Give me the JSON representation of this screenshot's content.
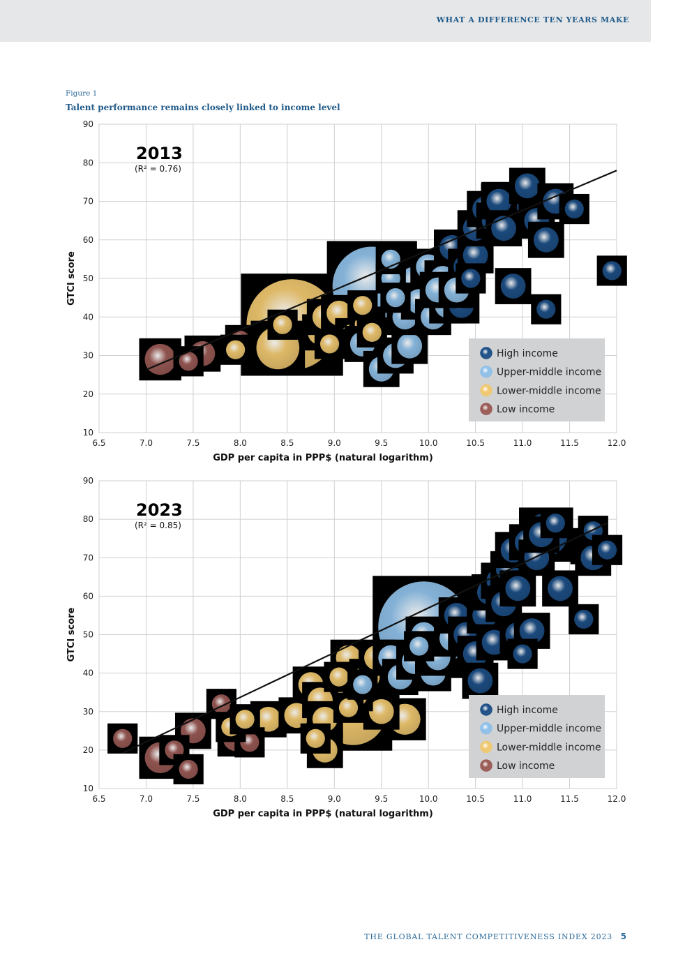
{
  "header": {
    "running_title": "WHAT A DIFFERENCE TEN YEARS MAKE"
  },
  "figure": {
    "label": "Figure 1",
    "title": "Talent performance remains closely linked to income level"
  },
  "colors": {
    "high": "#1d4f86",
    "upper_middle": "#8fc0e8",
    "lower_middle": "#f0c870",
    "low": "#9a5a55",
    "legend_bg": "#d1d2d4",
    "grid": "#cfcfcf",
    "header_band": "#e6e7e8"
  },
  "legend": {
    "items": [
      {
        "key": "high",
        "label": "High income"
      },
      {
        "key": "upper_middle",
        "label": "Upper-middle income"
      },
      {
        "key": "lower_middle",
        "label": "Lower-middle income"
      },
      {
        "key": "low",
        "label": "Low income"
      }
    ]
  },
  "chart_data": [
    {
      "type": "scatter",
      "title": "2013",
      "r2_label": "(R² = 0.76)",
      "xlabel": "GDP per capita in PPP$ (natural logarithm)",
      "ylabel": "GTCI score",
      "xlim": [
        6.5,
        12.0
      ],
      "ylim": [
        10,
        90
      ],
      "xticks": [
        "6.5",
        "7.0",
        "7.5",
        "8.0",
        "8.5",
        "9.0",
        "9.5",
        "10.0",
        "10.5",
        "11.0",
        "11.5",
        "12.0"
      ],
      "yticks": [
        "10",
        "20",
        "30",
        "40",
        "50",
        "60",
        "70",
        "80",
        "90"
      ],
      "trendline": {
        "x": [
          7.0,
          12.0
        ],
        "y": [
          26.3,
          78.0
        ]
      },
      "points": [
        {
          "x": 7.15,
          "y": 29,
          "s": 4,
          "g": "low"
        },
        {
          "x": 7.45,
          "y": 28.5,
          "s": 2,
          "g": "low"
        },
        {
          "x": 7.6,
          "y": 30.5,
          "s": 3,
          "g": "low"
        },
        {
          "x": 8.0,
          "y": 34,
          "s": 2,
          "g": "low"
        },
        {
          "x": 7.95,
          "y": 31.5,
          "s": 2,
          "g": "lower_middle"
        },
        {
          "x": 8.55,
          "y": 38,
          "s": 14,
          "g": "lower_middle"
        },
        {
          "x": 8.4,
          "y": 32,
          "s": 6,
          "g": "lower_middle"
        },
        {
          "x": 8.45,
          "y": 38,
          "s": 2,
          "g": "lower_middle"
        },
        {
          "x": 8.85,
          "y": 36,
          "s": 3,
          "g": "lower_middle"
        },
        {
          "x": 8.9,
          "y": 40,
          "s": 3,
          "g": "lower_middle"
        },
        {
          "x": 8.95,
          "y": 33,
          "s": 2,
          "g": "lower_middle"
        },
        {
          "x": 9.05,
          "y": 41,
          "s": 3,
          "g": "lower_middle"
        },
        {
          "x": 9.2,
          "y": 35,
          "s": 3,
          "g": "lower_middle"
        },
        {
          "x": 9.3,
          "y": 43,
          "s": 2,
          "g": "lower_middle"
        },
        {
          "x": 9.35,
          "y": 38,
          "s": 3,
          "g": "lower_middle"
        },
        {
          "x": 9.4,
          "y": 36,
          "s": 2,
          "g": "lower_middle"
        },
        {
          "x": 9.3,
          "y": 33,
          "s": 3,
          "g": "upper_middle"
        },
        {
          "x": 9.4,
          "y": 48,
          "s": 12,
          "g": "upper_middle"
        },
        {
          "x": 9.5,
          "y": 26.5,
          "s": 3,
          "g": "upper_middle"
        },
        {
          "x": 9.65,
          "y": 30,
          "s": 3,
          "g": "upper_middle"
        },
        {
          "x": 9.8,
          "y": 32.5,
          "s": 3,
          "g": "upper_middle"
        },
        {
          "x": 9.6,
          "y": 50,
          "s": 2,
          "g": "upper_middle"
        },
        {
          "x": 9.65,
          "y": 45,
          "s": 2,
          "g": "upper_middle"
        },
        {
          "x": 9.75,
          "y": 40,
          "s": 3,
          "g": "upper_middle"
        },
        {
          "x": 9.6,
          "y": 55,
          "s": 2,
          "g": "upper_middle"
        },
        {
          "x": 9.9,
          "y": 44,
          "s": 3,
          "g": "upper_middle"
        },
        {
          "x": 10.0,
          "y": 53,
          "s": 3,
          "g": "upper_middle"
        },
        {
          "x": 10.05,
          "y": 40,
          "s": 3,
          "g": "upper_middle"
        },
        {
          "x": 10.15,
          "y": 50,
          "s": 3,
          "g": "upper_middle"
        },
        {
          "x": 10.2,
          "y": 43,
          "s": 3,
          "g": "upper_middle"
        },
        {
          "x": 10.25,
          "y": 58,
          "s": 3,
          "g": "high"
        },
        {
          "x": 10.35,
          "y": 43,
          "s": 3,
          "g": "high"
        },
        {
          "x": 10.4,
          "y": 53,
          "s": 3,
          "g": "high"
        },
        {
          "x": 10.45,
          "y": 50,
          "s": 2,
          "g": "high"
        },
        {
          "x": 10.5,
          "y": 56,
          "s": 3,
          "g": "high"
        },
        {
          "x": 10.5,
          "y": 63,
          "s": 3,
          "g": "high"
        },
        {
          "x": 10.6,
          "y": 68,
          "s": 3,
          "g": "high"
        },
        {
          "x": 10.7,
          "y": 65,
          "s": 3,
          "g": "high"
        },
        {
          "x": 10.75,
          "y": 70,
          "s": 3,
          "g": "high"
        },
        {
          "x": 10.8,
          "y": 63,
          "s": 3,
          "g": "high"
        },
        {
          "x": 10.85,
          "y": 68,
          "s": 6,
          "g": "high"
        },
        {
          "x": 10.9,
          "y": 48,
          "s": 3,
          "g": "high"
        },
        {
          "x": 11.05,
          "y": 74,
          "s": 3,
          "g": "high"
        },
        {
          "x": 11.15,
          "y": 65,
          "s": 3,
          "g": "high"
        },
        {
          "x": 11.25,
          "y": 60,
          "s": 3,
          "g": "high"
        },
        {
          "x": 11.25,
          "y": 42,
          "s": 2,
          "g": "high"
        },
        {
          "x": 11.35,
          "y": 70,
          "s": 3,
          "g": "high"
        },
        {
          "x": 11.55,
          "y": 68,
          "s": 2,
          "g": "high"
        },
        {
          "x": 11.95,
          "y": 52,
          "s": 2,
          "g": "high"
        },
        {
          "x": 10.1,
          "y": 47,
          "s": 3,
          "g": "upper_middle"
        },
        {
          "x": 9.85,
          "y": 49,
          "s": 4,
          "g": "upper_middle"
        },
        {
          "x": 10.3,
          "y": 47,
          "s": 3,
          "g": "upper_middle"
        }
      ]
    },
    {
      "type": "scatter",
      "title": "2023",
      "r2_label": "(R² = 0.85)",
      "xlabel": "GDP per capita in PPP$ (natural logarithm)",
      "ylabel": "GTCI score",
      "xlim": [
        6.5,
        12.0
      ],
      "ylim": [
        10,
        90
      ],
      "xticks": [
        "6.5",
        "7.0",
        "7.5",
        "8.0",
        "8.5",
        "9.0",
        "9.5",
        "10.0",
        "10.5",
        "11.0",
        "11.5",
        "12.0"
      ],
      "yticks": [
        "10",
        "20",
        "30",
        "40",
        "50",
        "60",
        "70",
        "80",
        "90"
      ],
      "trendline": {
        "x": [
          6.75,
          11.9
        ],
        "y": [
          19.2,
          79.0
        ]
      },
      "points": [
        {
          "x": 6.75,
          "y": 23,
          "s": 2,
          "g": "low"
        },
        {
          "x": 7.15,
          "y": 18,
          "s": 4,
          "g": "low"
        },
        {
          "x": 7.3,
          "y": 20,
          "s": 2,
          "g": "low"
        },
        {
          "x": 7.45,
          "y": 15,
          "s": 2,
          "g": "low"
        },
        {
          "x": 7.5,
          "y": 25,
          "s": 3,
          "g": "low"
        },
        {
          "x": 7.8,
          "y": 32,
          "s": 2,
          "g": "low"
        },
        {
          "x": 7.95,
          "y": 23,
          "s": 3,
          "g": "low"
        },
        {
          "x": 8.1,
          "y": 22,
          "s": 2,
          "g": "low"
        },
        {
          "x": 7.9,
          "y": 26,
          "s": 2,
          "g": "lower_middle"
        },
        {
          "x": 8.05,
          "y": 28,
          "s": 2,
          "g": "lower_middle"
        },
        {
          "x": 8.3,
          "y": 28,
          "s": 3,
          "g": "lower_middle"
        },
        {
          "x": 8.6,
          "y": 29,
          "s": 3,
          "g": "lower_middle"
        },
        {
          "x": 8.75,
          "y": 37,
          "s": 3,
          "g": "lower_middle"
        },
        {
          "x": 8.85,
          "y": 33,
          "s": 3,
          "g": "lower_middle"
        },
        {
          "x": 8.8,
          "y": 23,
          "s": 2,
          "g": "lower_middle"
        },
        {
          "x": 8.9,
          "y": 28,
          "s": 3,
          "g": "lower_middle"
        },
        {
          "x": 8.9,
          "y": 20,
          "s": 3,
          "g": "lower_middle"
        },
        {
          "x": 9.2,
          "y": 30,
          "s": 10,
          "g": "lower_middle"
        },
        {
          "x": 9.15,
          "y": 44,
          "s": 3,
          "g": "lower_middle"
        },
        {
          "x": 9.25,
          "y": 34,
          "s": 2,
          "g": "lower_middle"
        },
        {
          "x": 9.35,
          "y": 39,
          "s": 3,
          "g": "lower_middle"
        },
        {
          "x": 9.45,
          "y": 44,
          "s": 3,
          "g": "lower_middle"
        },
        {
          "x": 9.5,
          "y": 30,
          "s": 3,
          "g": "lower_middle"
        },
        {
          "x": 9.75,
          "y": 28,
          "s": 4,
          "g": "lower_middle"
        },
        {
          "x": 9.05,
          "y": 39,
          "s": 2,
          "g": "lower_middle"
        },
        {
          "x": 9.15,
          "y": 31,
          "s": 2,
          "g": "lower_middle"
        },
        {
          "x": 9.95,
          "y": 52,
          "s": 14,
          "g": "upper_middle"
        },
        {
          "x": 9.3,
          "y": 37,
          "s": 2,
          "g": "upper_middle"
        },
        {
          "x": 9.6,
          "y": 44,
          "s": 3,
          "g": "upper_middle"
        },
        {
          "x": 9.7,
          "y": 39,
          "s": 3,
          "g": "upper_middle"
        },
        {
          "x": 9.85,
          "y": 43,
          "s": 3,
          "g": "upper_middle"
        },
        {
          "x": 9.9,
          "y": 47,
          "s": 2,
          "g": "upper_middle"
        },
        {
          "x": 9.95,
          "y": 50,
          "s": 3,
          "g": "upper_middle"
        },
        {
          "x": 10.05,
          "y": 40,
          "s": 3,
          "g": "upper_middle"
        },
        {
          "x": 10.1,
          "y": 44,
          "s": 3,
          "g": "upper_middle"
        },
        {
          "x": 10.25,
          "y": 49,
          "s": 3,
          "g": "upper_middle"
        },
        {
          "x": 10.3,
          "y": 55,
          "s": 3,
          "g": "high"
        },
        {
          "x": 10.4,
          "y": 50,
          "s": 3,
          "g": "high"
        },
        {
          "x": 10.5,
          "y": 45,
          "s": 3,
          "g": "high"
        },
        {
          "x": 10.55,
          "y": 38,
          "s": 3,
          "g": "high"
        },
        {
          "x": 10.6,
          "y": 55,
          "s": 3,
          "g": "high"
        },
        {
          "x": 10.65,
          "y": 61,
          "s": 3,
          "g": "high"
        },
        {
          "x": 10.7,
          "y": 48,
          "s": 3,
          "g": "high"
        },
        {
          "x": 10.75,
          "y": 64,
          "s": 3,
          "g": "high"
        },
        {
          "x": 10.8,
          "y": 58,
          "s": 3,
          "g": "high"
        },
        {
          "x": 10.85,
          "y": 67,
          "s": 3,
          "g": "high"
        },
        {
          "x": 10.9,
          "y": 72,
          "s": 3,
          "g": "high"
        },
        {
          "x": 10.95,
          "y": 50,
          "s": 3,
          "g": "high"
        },
        {
          "x": 11.0,
          "y": 45,
          "s": 2,
          "g": "high"
        },
        {
          "x": 11.05,
          "y": 74,
          "s": 3,
          "g": "high"
        },
        {
          "x": 11.15,
          "y": 70,
          "s": 3,
          "g": "high"
        },
        {
          "x": 11.2,
          "y": 76,
          "s": 3,
          "g": "high"
        },
        {
          "x": 11.25,
          "y": 76,
          "s": 6,
          "g": "high"
        },
        {
          "x": 11.35,
          "y": 79,
          "s": 2,
          "g": "high"
        },
        {
          "x": 11.4,
          "y": 62,
          "s": 3,
          "g": "high"
        },
        {
          "x": 11.65,
          "y": 54,
          "s": 2,
          "g": "high"
        },
        {
          "x": 11.7,
          "y": 73,
          "s": 3,
          "g": "high"
        },
        {
          "x": 11.75,
          "y": 70,
          "s": 3,
          "g": "high"
        },
        {
          "x": 11.75,
          "y": 77,
          "s": 2,
          "g": "high"
        },
        {
          "x": 11.9,
          "y": 72,
          "s": 2,
          "g": "high"
        },
        {
          "x": 11.1,
          "y": 51,
          "s": 3,
          "g": "high"
        },
        {
          "x": 10.95,
          "y": 62,
          "s": 3,
          "g": "high"
        }
      ]
    }
  ],
  "footer": {
    "publication": "THE GLOBAL TALENT COMPETITIVENESS INDEX 2023",
    "page_number": "5"
  }
}
